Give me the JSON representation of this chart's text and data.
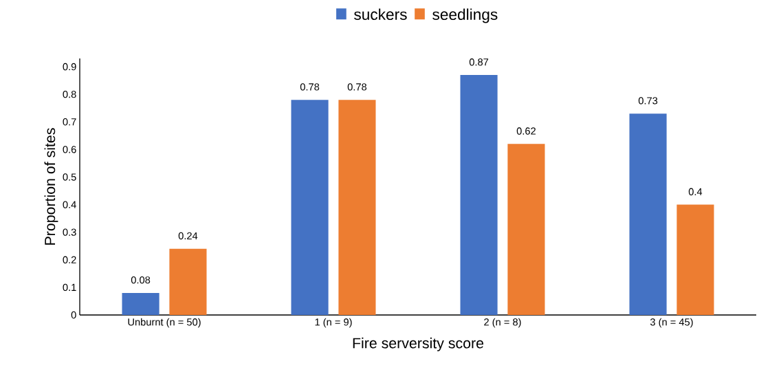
{
  "chart_data": {
    "type": "bar",
    "xlabel": "Fire serversity score",
    "ylabel": "Proportion of sites",
    "categories": [
      "Unburnt (n = 50)",
      "1 (n = 9)",
      "2 (n = 8)",
      "3 (n = 45)"
    ],
    "series": [
      {
        "name": "suckers",
        "color": "#4472c4",
        "values": [
          0.08,
          0.78,
          0.87,
          0.73
        ],
        "value_labels": [
          "0.08",
          "0.78",
          "0.87",
          "0.73"
        ]
      },
      {
        "name": "seedlings",
        "color": "#ed7d31",
        "values": [
          0.24,
          0.78,
          0.62,
          0.4
        ],
        "value_labels": [
          "0.24",
          "0.78",
          "0.62",
          "0.4"
        ]
      }
    ],
    "ylim": [
      0,
      0.93
    ],
    "yticks": [
      0,
      0.1,
      0.2,
      0.3,
      0.4,
      0.5,
      0.6,
      0.7,
      0.8,
      0.9
    ],
    "legend": "top",
    "grid": false
  }
}
